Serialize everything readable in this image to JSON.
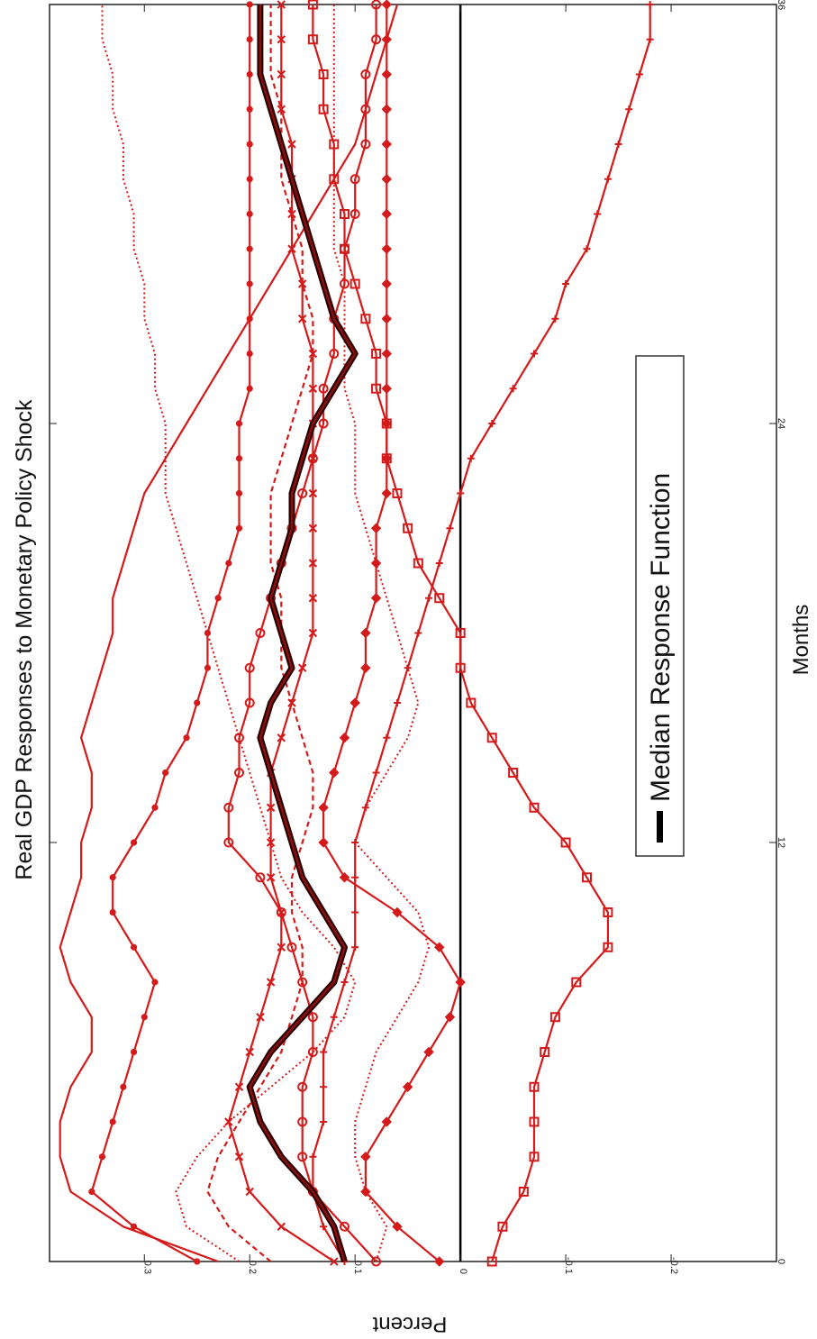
{
  "chart_data": {
    "type": "line",
    "title": "Real GDP Responses to Monetary Policy Shock",
    "xlabel": "Months",
    "ylabel": "Percent",
    "xlim": [
      0,
      36
    ],
    "ylim": [
      -0.3,
      0.39
    ],
    "x_ticks": [
      0,
      12,
      24,
      36
    ],
    "y_ticks": [
      {
        "value": 0.3,
        "label": "0.3"
      },
      {
        "value": 0.2,
        "label": "0.2"
      },
      {
        "value": 0.1,
        "label": "0.1"
      },
      {
        "value": 0,
        "label": "0"
      },
      {
        "value": -0.1,
        "label": "-0.1"
      },
      {
        "value": -0.2,
        "label": "-0.2"
      }
    ],
    "zero_line": true,
    "grid": false,
    "legend": {
      "position": "bottom-right",
      "entries": [
        "Median Response Function"
      ]
    },
    "median": [
      0.11,
      0.12,
      0.14,
      0.17,
      0.19,
      0.2,
      0.18,
      0.15,
      0.12,
      0.11,
      0.13,
      0.15,
      0.16,
      0.17,
      0.18,
      0.19,
      0.18,
      0.16,
      0.17,
      0.18,
      0.17,
      0.16,
      0.16,
      0.15,
      0.14,
      0.12,
      0.1,
      0.12,
      0.13,
      0.14,
      0.15,
      0.16,
      0.17,
      0.18,
      0.19,
      0.19,
      0.19
    ],
    "series": [
      {
        "style": "solid",
        "marker": "",
        "values": [
          0.23,
          0.32,
          0.37,
          0.38,
          0.38,
          0.37,
          0.35,
          0.35,
          0.37,
          0.38,
          0.37,
          0.36,
          0.36,
          0.35,
          0.35,
          0.36,
          0.35,
          0.34,
          0.33,
          0.33,
          0.32,
          0.31,
          0.3,
          0.28,
          0.26,
          0.24,
          0.22,
          0.2,
          0.18,
          0.16,
          0.14,
          0.12,
          0.1,
          0.09,
          0.08,
          0.07,
          0.06
        ]
      },
      {
        "style": "solid",
        "marker": "dot",
        "values": [
          0.25,
          0.31,
          0.35,
          0.34,
          0.33,
          0.32,
          0.31,
          0.3,
          0.29,
          0.31,
          0.33,
          0.33,
          0.31,
          0.29,
          0.28,
          0.26,
          0.25,
          0.24,
          0.24,
          0.23,
          0.22,
          0.21,
          0.21,
          0.21,
          0.21,
          0.2,
          0.2,
          0.2,
          0.2,
          0.2,
          0.2,
          0.2,
          0.2,
          0.2,
          0.2,
          0.2,
          0.2
        ]
      },
      {
        "style": "dotted",
        "marker": "",
        "values": [
          0.21,
          0.26,
          0.27,
          0.25,
          0.22,
          0.18,
          0.14,
          0.11,
          0.1,
          0.12,
          0.15,
          0.17,
          0.18,
          0.19,
          0.2,
          0.21,
          0.22,
          0.23,
          0.24,
          0.25,
          0.26,
          0.27,
          0.28,
          0.28,
          0.28,
          0.29,
          0.29,
          0.3,
          0.3,
          0.31,
          0.31,
          0.32,
          0.32,
          0.33,
          0.33,
          0.34,
          0.34
        ]
      },
      {
        "style": "dashed",
        "marker": "",
        "values": [
          0.18,
          0.22,
          0.24,
          0.23,
          0.21,
          0.19,
          0.17,
          0.16,
          0.15,
          0.15,
          0.16,
          0.16,
          0.15,
          0.14,
          0.14,
          0.15,
          0.16,
          0.17,
          0.17,
          0.17,
          0.18,
          0.18,
          0.18,
          0.17,
          0.16,
          0.15,
          0.14,
          0.14,
          0.15,
          0.15,
          0.16,
          0.17,
          0.17,
          0.17,
          0.18,
          0.18,
          0.18
        ]
      },
      {
        "style": "solid",
        "marker": "x",
        "values": [
          0.12,
          0.17,
          0.2,
          0.21,
          0.22,
          0.21,
          0.2,
          0.19,
          0.18,
          0.17,
          0.17,
          0.18,
          0.18,
          0.18,
          0.18,
          0.17,
          0.16,
          0.15,
          0.14,
          0.14,
          0.14,
          0.14,
          0.14,
          0.14,
          0.14,
          0.14,
          0.14,
          0.15,
          0.15,
          0.16,
          0.16,
          0.16,
          0.16,
          0.17,
          0.17,
          0.17,
          0.17
        ]
      },
      {
        "style": "solid",
        "marker": "circle",
        "values": [
          0.08,
          0.11,
          0.14,
          0.15,
          0.15,
          0.15,
          0.14,
          0.14,
          0.15,
          0.16,
          0.17,
          0.19,
          0.22,
          0.22,
          0.21,
          0.21,
          0.2,
          0.2,
          0.19,
          0.18,
          0.17,
          0.16,
          0.15,
          0.14,
          0.13,
          0.13,
          0.12,
          0.12,
          0.11,
          0.11,
          0.1,
          0.1,
          0.09,
          0.09,
          0.09,
          0.08,
          0.08
        ]
      },
      {
        "style": "solid",
        "marker": "diamond",
        "values": [
          0.02,
          0.06,
          0.09,
          0.09,
          0.07,
          0.05,
          0.03,
          0.01,
          0.0,
          0.02,
          0.06,
          0.11,
          0.13,
          0.13,
          0.12,
          0.11,
          0.1,
          0.09,
          0.09,
          0.08,
          0.08,
          0.08,
          0.07,
          0.07,
          0.07,
          0.07,
          0.07,
          0.07,
          0.07,
          0.07,
          0.07,
          0.07,
          0.07,
          0.07,
          0.07,
          0.07,
          0.07
        ]
      },
      {
        "style": "dotted",
        "marker": "",
        "values": [
          0.08,
          0.07,
          0.09,
          0.1,
          0.1,
          0.09,
          0.08,
          0.06,
          0.04,
          0.03,
          0.04,
          0.07,
          0.1,
          0.09,
          0.07,
          0.05,
          0.04,
          0.05,
          0.06,
          0.07,
          0.08,
          0.09,
          0.1,
          0.1,
          0.1,
          0.11,
          0.11,
          0.11,
          0.11,
          0.12,
          0.12,
          0.12,
          0.12,
          0.12,
          0.12,
          0.12,
          0.12
        ]
      },
      {
        "style": "solid",
        "marker": "plus",
        "values": [
          0.11,
          0.13,
          0.14,
          0.14,
          0.13,
          0.13,
          0.13,
          0.12,
          0.11,
          0.1,
          0.1,
          0.1,
          0.1,
          0.09,
          0.08,
          0.07,
          0.06,
          0.05,
          0.04,
          0.03,
          0.02,
          0.01,
          0.0,
          -0.01,
          -0.03,
          -0.05,
          -0.07,
          -0.09,
          -0.1,
          -0.12,
          -0.13,
          -0.14,
          -0.15,
          -0.16,
          -0.17,
          -0.18,
          -0.18
        ]
      },
      {
        "style": "solid",
        "marker": "square",
        "values": [
          -0.03,
          -0.04,
          -0.06,
          -0.07,
          -0.07,
          -0.07,
          -0.08,
          -0.09,
          -0.11,
          -0.14,
          -0.14,
          -0.12,
          -0.1,
          -0.07,
          -0.05,
          -0.03,
          -0.01,
          0.0,
          0.0,
          0.02,
          0.04,
          0.05,
          0.06,
          0.07,
          0.07,
          0.08,
          0.08,
          0.09,
          0.1,
          0.11,
          0.11,
          0.12,
          0.12,
          0.13,
          0.13,
          0.14,
          0.14
        ]
      }
    ]
  }
}
